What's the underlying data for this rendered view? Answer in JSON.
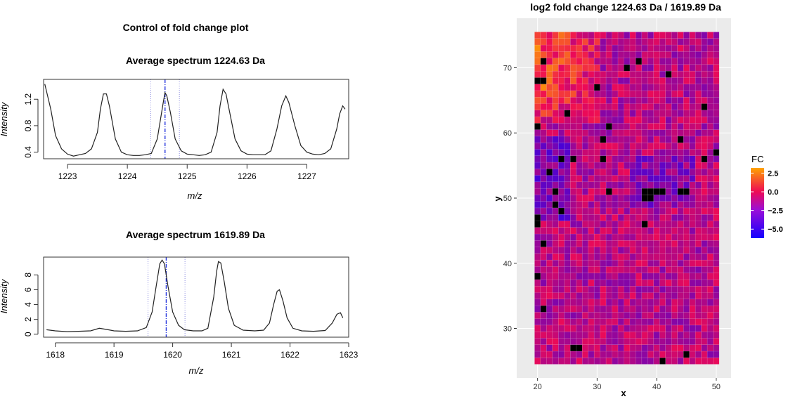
{
  "chart_data": [
    {
      "type": "line",
      "title": "Average spectrum 1224.63 Da",
      "xlabel": "m/z",
      "ylabel": "Intensity",
      "xlim": [
        1222.6,
        1227.7
      ],
      "ylim": [
        0.3,
        1.5
      ],
      "xticks": [
        "1223",
        "1224",
        "1225",
        "1226",
        "1227"
      ],
      "yticks": [
        "0.4",
        "0.8",
        "1.2"
      ],
      "target": 1224.63,
      "window": [
        1224.39,
        1224.87
      ],
      "series": [
        {
          "x": [
            1222.62,
            1222.72,
            1222.8,
            1222.9,
            1223.0,
            1223.1,
            1223.2,
            1223.3,
            1223.4,
            1223.5,
            1223.55,
            1223.6,
            1223.65,
            1223.7,
            1223.8,
            1223.9,
            1224.0,
            1224.1,
            1224.2,
            1224.3,
            1224.4,
            1224.5,
            1224.6,
            1224.63,
            1224.66,
            1224.72,
            1224.8,
            1224.9,
            1225.0,
            1225.1,
            1225.2,
            1225.3,
            1225.4,
            1225.5,
            1225.55,
            1225.6,
            1225.65,
            1225.7,
            1225.8,
            1225.9,
            1226.0,
            1226.1,
            1226.2,
            1226.3,
            1226.4,
            1226.5,
            1226.58,
            1226.65,
            1226.7,
            1226.8,
            1226.9,
            1227.0,
            1227.1,
            1227.2,
            1227.3,
            1227.4,
            1227.5,
            1227.55,
            1227.6,
            1227.64
          ],
          "y": [
            1.43,
            1.05,
            0.65,
            0.45,
            0.37,
            0.34,
            0.36,
            0.38,
            0.45,
            0.7,
            1.05,
            1.28,
            1.28,
            1.1,
            0.6,
            0.4,
            0.36,
            0.35,
            0.35,
            0.36,
            0.38,
            0.6,
            1.15,
            1.3,
            1.25,
            1.0,
            0.6,
            0.42,
            0.37,
            0.36,
            0.35,
            0.36,
            0.4,
            0.7,
            1.1,
            1.35,
            1.28,
            1.05,
            0.6,
            0.42,
            0.37,
            0.36,
            0.36,
            0.36,
            0.42,
            0.75,
            1.1,
            1.25,
            1.15,
            0.8,
            0.5,
            0.4,
            0.37,
            0.36,
            0.38,
            0.45,
            0.75,
            0.98,
            1.1,
            1.05
          ]
        }
      ]
    },
    {
      "type": "line",
      "title": "Average spectrum 1619.89 Da",
      "xlabel": "m/z",
      "ylabel": "Intensity",
      "xlim": [
        1617.8,
        1623.0
      ],
      "ylim": [
        -0.4,
        10.4
      ],
      "xticks": [
        "1618",
        "1619",
        "1620",
        "1621",
        "1622",
        "1623"
      ],
      "yticks": [
        "0",
        "2",
        "4",
        "6",
        "8"
      ],
      "target": 1619.89,
      "window": [
        1619.58,
        1620.21
      ],
      "series": [
        {
          "x": [
            1617.85,
            1618.0,
            1618.2,
            1618.4,
            1618.6,
            1618.75,
            1618.9,
            1619.0,
            1619.2,
            1619.4,
            1619.55,
            1619.65,
            1619.72,
            1619.78,
            1619.82,
            1619.86,
            1619.92,
            1620.0,
            1620.1,
            1620.2,
            1620.35,
            1620.5,
            1620.6,
            1620.7,
            1620.75,
            1620.78,
            1620.82,
            1620.88,
            1620.95,
            1621.05,
            1621.2,
            1621.4,
            1621.55,
            1621.65,
            1621.72,
            1621.78,
            1621.82,
            1621.88,
            1621.95,
            1622.05,
            1622.2,
            1622.4,
            1622.6,
            1622.72,
            1622.8,
            1622.86,
            1622.9
          ],
          "y": [
            0.6,
            0.45,
            0.35,
            0.4,
            0.45,
            0.8,
            0.6,
            0.45,
            0.4,
            0.45,
            0.9,
            3.0,
            6.5,
            9.5,
            10.0,
            9.5,
            6.5,
            3.0,
            1.2,
            0.6,
            0.45,
            0.45,
            0.8,
            5.0,
            8.5,
            9.8,
            9.6,
            7.0,
            3.5,
            1.2,
            0.55,
            0.45,
            0.55,
            1.5,
            4.0,
            5.8,
            6.0,
            4.5,
            2.2,
            0.8,
            0.45,
            0.4,
            0.5,
            1.5,
            2.7,
            2.9,
            2.2
          ]
        }
      ]
    },
    {
      "type": "heatmap",
      "title": "log2 fold change 1224.63 Da / 1619.89 Da",
      "xlabel": "x",
      "ylabel": "y",
      "x_range": [
        20,
        50
      ],
      "y_range": [
        25,
        75
      ],
      "xticks": [
        "20",
        "30",
        "40",
        "50"
      ],
      "yticks": [
        "30",
        "40",
        "50",
        "60",
        "70"
      ],
      "legend_title": "FC",
      "legend_labels": [
        "2.5",
        "0.0",
        "−2.5",
        "−5.0"
      ],
      "legend_values": [
        2.5,
        0.0,
        -2.5,
        -5.0
      ],
      "fc_range": [
        -6.2,
        3.2
      ],
      "colors": {
        "low": "#1400ff",
        "mid": "#ee0a55",
        "high": "#ffa400"
      },
      "missing_cells": [
        [
          21,
          71
        ],
        [
          35,
          70
        ],
        [
          37,
          71
        ],
        [
          42,
          69
        ],
        [
          20,
          68
        ],
        [
          21,
          68
        ],
        [
          30,
          67
        ],
        [
          48,
          64
        ],
        [
          25,
          63
        ],
        [
          20,
          61
        ],
        [
          32,
          61
        ],
        [
          31,
          59
        ],
        [
          44,
          59
        ],
        [
          50,
          57
        ],
        [
          24,
          56
        ],
        [
          26,
          56
        ],
        [
          31,
          56
        ],
        [
          48,
          56
        ],
        [
          22,
          54
        ],
        [
          23,
          51
        ],
        [
          32,
          51
        ],
        [
          38,
          51
        ],
        [
          39,
          51
        ],
        [
          40,
          51
        ],
        [
          41,
          51
        ],
        [
          44,
          51
        ],
        [
          45,
          51
        ],
        [
          38,
          50
        ],
        [
          39,
          50
        ],
        [
          23,
          49
        ],
        [
          24,
          48
        ],
        [
          20,
          47
        ],
        [
          20,
          46
        ],
        [
          38,
          46
        ],
        [
          21,
          43
        ],
        [
          20,
          38
        ],
        [
          21,
          33
        ],
        [
          26,
          27
        ],
        [
          27,
          27
        ],
        [
          45,
          26
        ],
        [
          41,
          25
        ]
      ],
      "legend_position": "right"
    }
  ],
  "header": {
    "title": "Control of fold change plot"
  }
}
